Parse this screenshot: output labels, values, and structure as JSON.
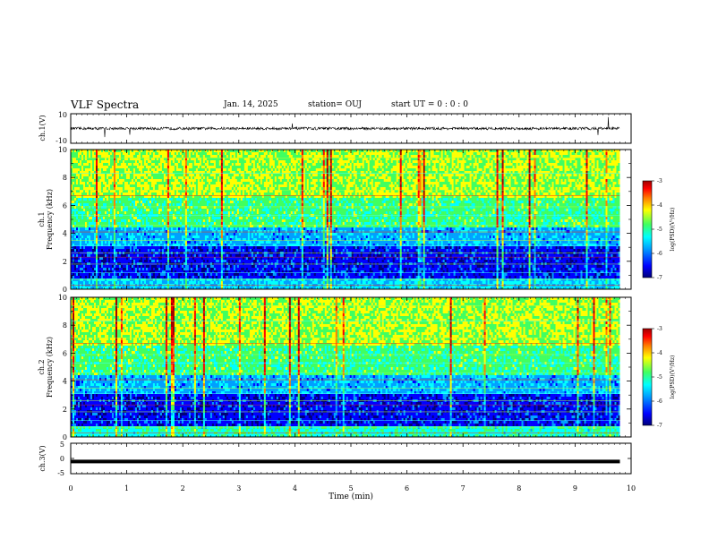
{
  "header": {
    "title": "VLF Spectra",
    "date": "Jan. 14, 2025",
    "station": "station= OUJ",
    "start": "start  UT =   0  : 0   : 0"
  },
  "colors": {
    "scale": [
      "#00007a",
      "#0000ff",
      "#00a0ff",
      "#00ffff",
      "#40ff60",
      "#ffff00",
      "#ff8000",
      "#ff0000",
      "#a00000"
    ]
  },
  "chart_data": [
    {
      "type": "line",
      "panel": "ch1-waveform",
      "ylabel": "ch.1(V)",
      "ylim": [
        -10,
        10
      ],
      "yticks": [
        "10",
        "-10"
      ],
      "baseline": 0,
      "description_values": {
        "typical_amplitude_v": 1.5
      }
    },
    {
      "type": "heatmap",
      "panel": "ch1-spectrogram",
      "ylabel_line1": "ch.1",
      "ylabel_line2": "Frequency  (kHz)",
      "ylim": [
        0,
        10
      ],
      "yticks": [
        "0",
        "2",
        "4",
        "6",
        "8",
        "10"
      ],
      "colorbar": {
        "label": "log(PSD)(V²/Hz)",
        "range": [
          -7,
          -3
        ],
        "ticks": [
          "-3",
          "-4",
          "-5",
          "-6",
          "-7"
        ]
      }
    },
    {
      "type": "heatmap",
      "panel": "ch2-spectrogram",
      "ylabel_line1": "ch.2",
      "ylabel_line2": "Frequency  (kHz)",
      "ylim": [
        0,
        10
      ],
      "yticks": [
        "0",
        "2",
        "4",
        "6",
        "8",
        "10"
      ],
      "colorbar": {
        "label": "log(PSD)(V²/Hz)",
        "range": [
          -7,
          -3
        ],
        "ticks": [
          "-3",
          "-4",
          "-5",
          "-6",
          "-7"
        ]
      }
    },
    {
      "type": "line",
      "panel": "ch3-waveform",
      "ylabel": "ch.3(V)",
      "ylim": [
        -5,
        5
      ],
      "yticks": [
        "5",
        "0",
        "-5"
      ],
      "baseline": -1
    }
  ],
  "xaxis": {
    "label": "Time  (min)",
    "range": [
      0,
      10
    ],
    "ticks": [
      "0",
      "1",
      "2",
      "3",
      "4",
      "5",
      "6",
      "7",
      "8",
      "9",
      "10"
    ],
    "data_end": 9.8
  }
}
